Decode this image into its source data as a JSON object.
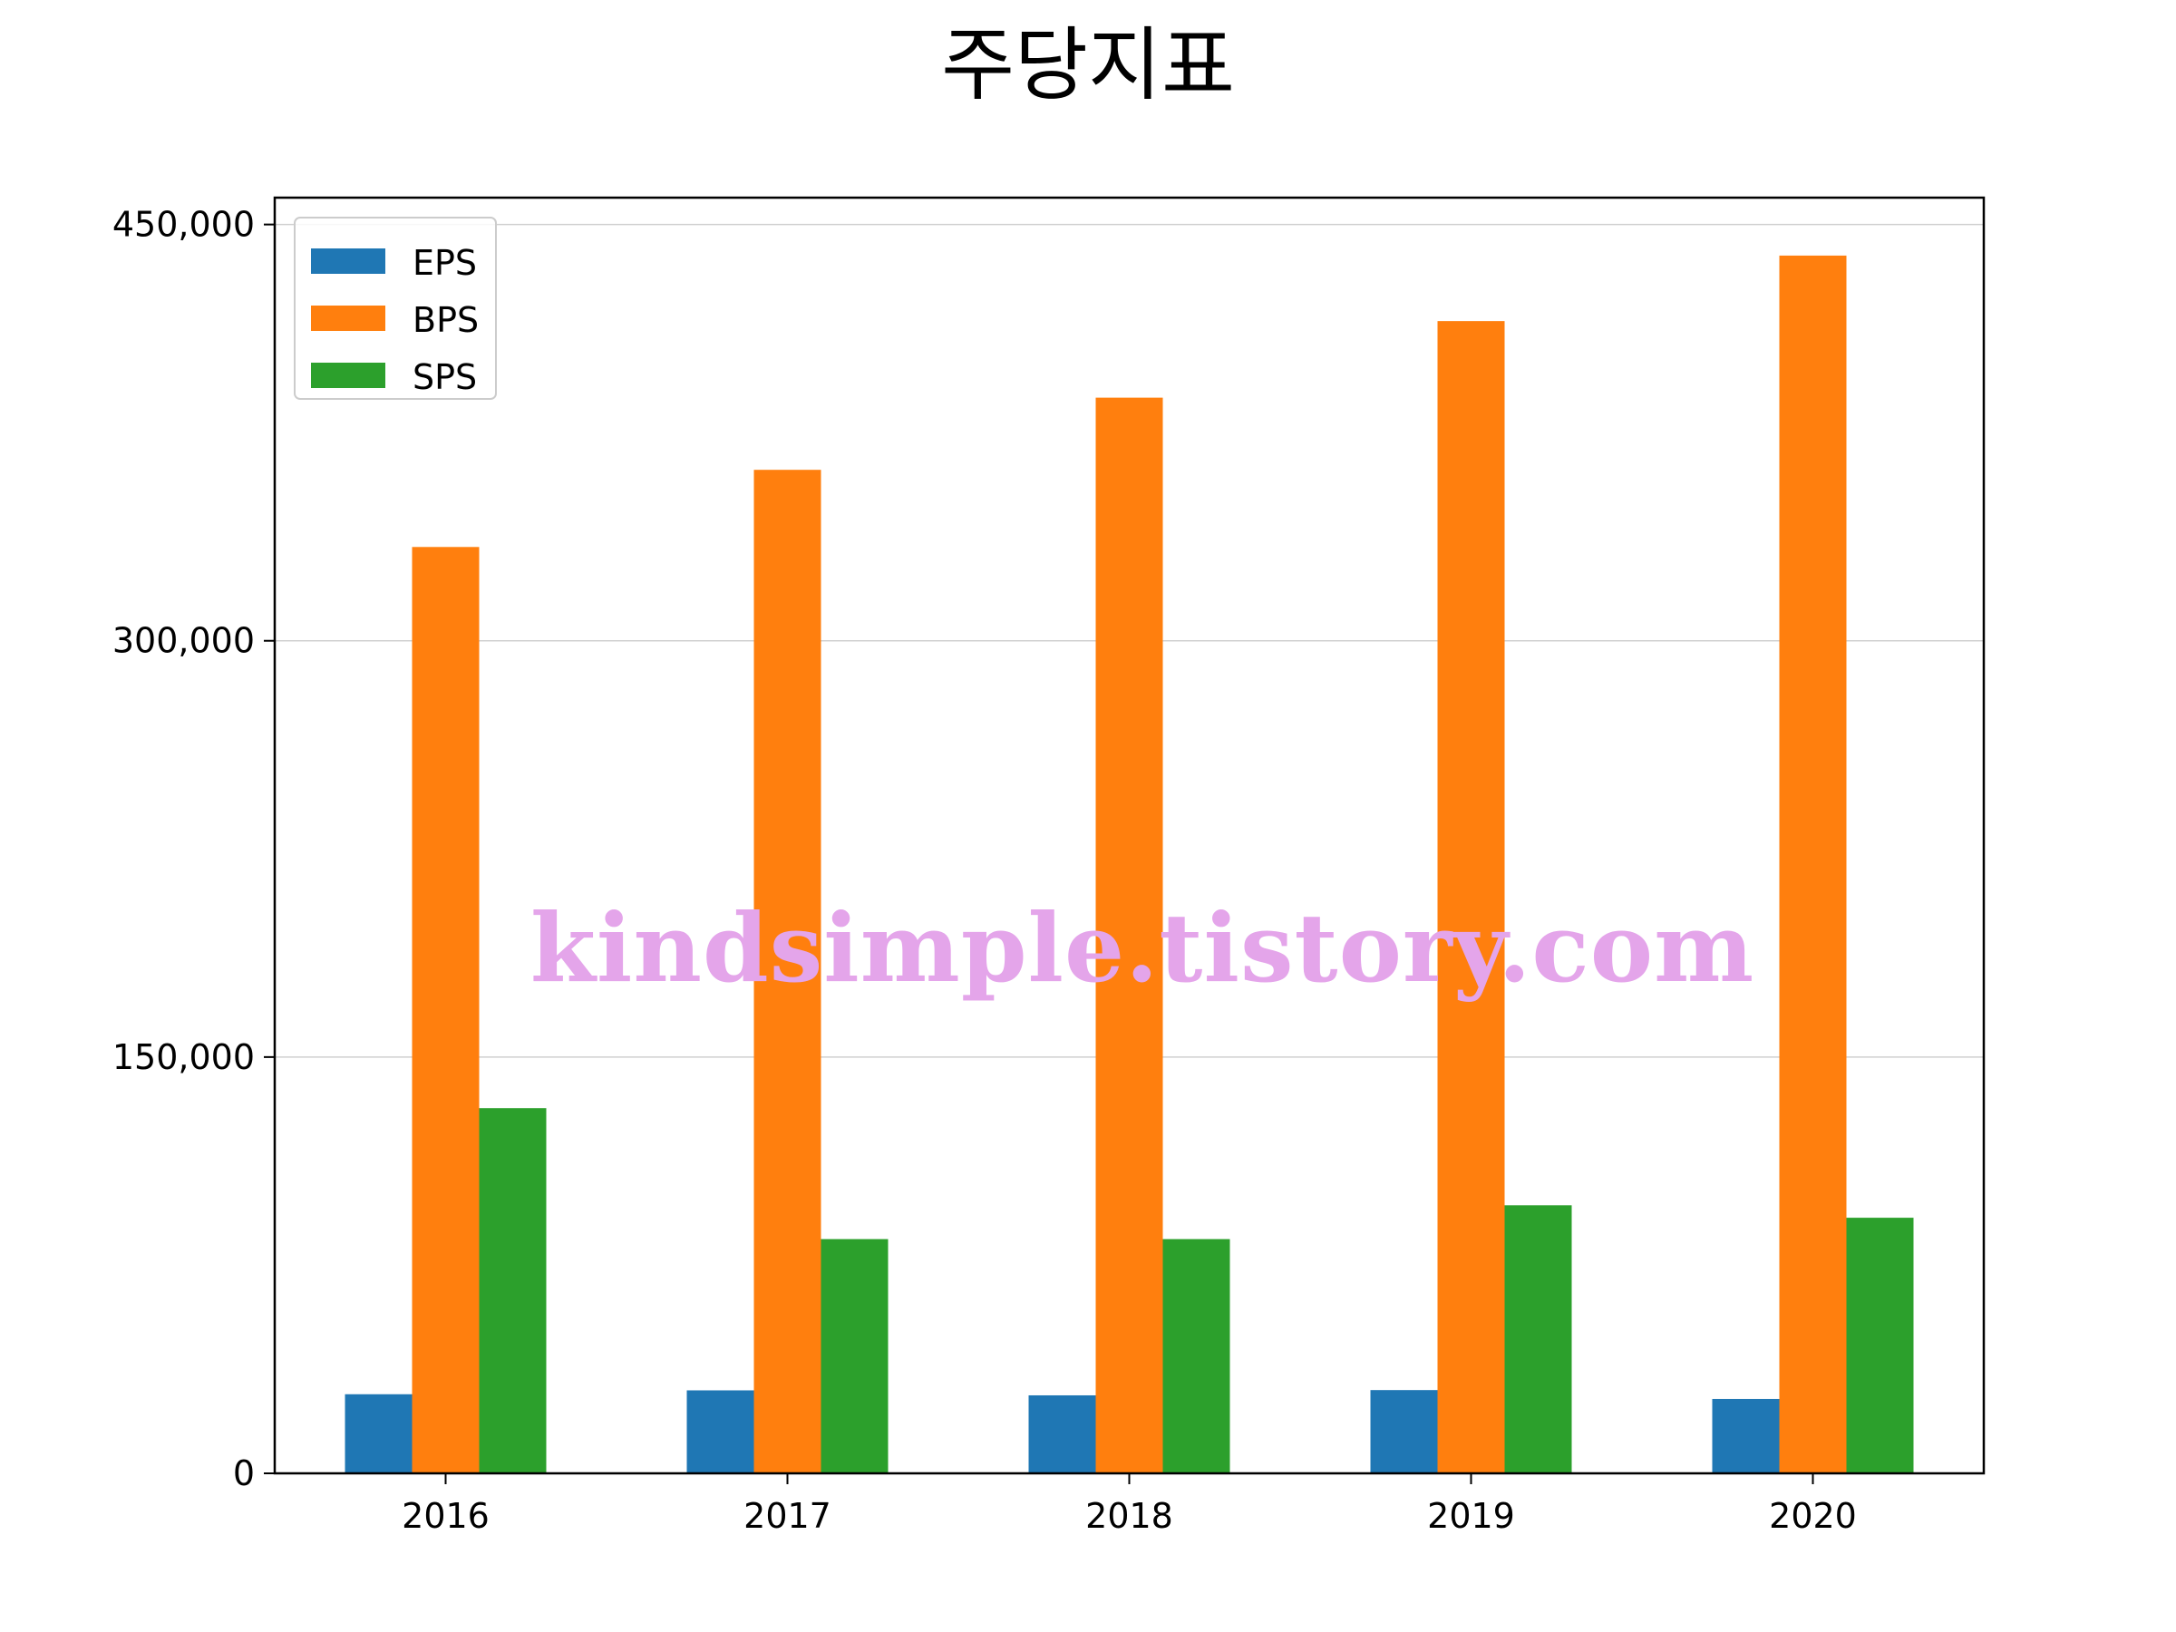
{
  "chart_data": {
    "type": "bar",
    "title": "주당지표",
    "xlabel": "",
    "ylabel": "",
    "categories": [
      "2016",
      "2017",
      "2018",
      "2019",
      "2020"
    ],
    "series": [
      {
        "name": "EPS",
        "color": "#1f77b4",
        "values": [
          28500,
          29900,
          28100,
          30000,
          26800
        ]
      },
      {
        "name": "BPS",
        "color": "#ff7f0e",
        "values": [
          333800,
          361600,
          387600,
          415200,
          438800
        ]
      },
      {
        "name": "SPS",
        "color": "#2ca02c",
        "values": [
          131600,
          84400,
          84400,
          96600,
          92100
        ]
      }
    ],
    "ylim": [
      0,
      450000
    ],
    "yticks": [
      0,
      150000,
      300000,
      450000
    ],
    "ytick_labels": [
      "0",
      "150,000",
      "300,000",
      "450,000"
    ],
    "grid": "horizontal",
    "legend_position": "top-left",
    "watermark": "kindsimple.tistory.com"
  }
}
